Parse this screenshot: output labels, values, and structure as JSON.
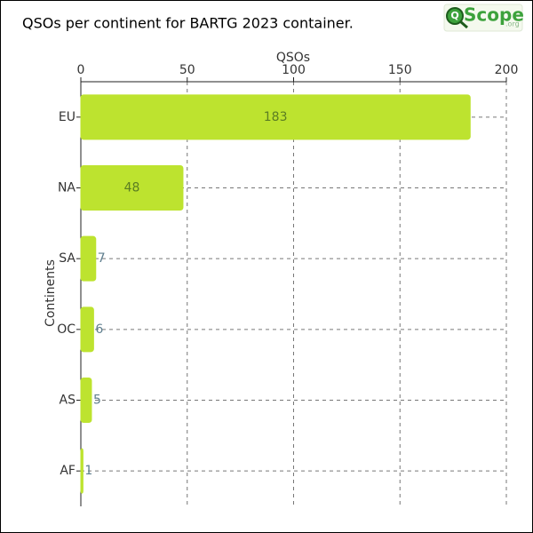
{
  "chart_data": {
    "type": "hbar",
    "title": "QSOs per continent for BARTG 2023 container.",
    "logo": {
      "mark": "Q",
      "text": "Scope",
      "suffix": ".org"
    },
    "x_label": "QSOs",
    "y_label": "Continents",
    "categories": [
      "EU",
      "NA",
      "SA",
      "OC",
      "AS",
      "AF"
    ],
    "values": [
      183,
      48,
      7,
      6,
      5,
      1
    ],
    "color": "#bde32f",
    "xlim": [
      0,
      200
    ],
    "xticks": [
      0,
      50,
      100,
      150,
      200
    ],
    "grid": true
  }
}
